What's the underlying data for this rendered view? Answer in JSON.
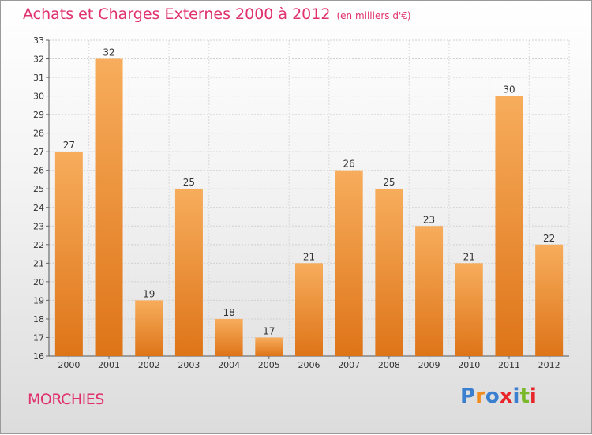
{
  "header": {
    "title": "Achats et Charges Externes 2000 à 2012",
    "unit": "(en milliers d'€)"
  },
  "footer": {
    "place": "MORCHIES",
    "logo_letters": [
      "P",
      "r",
      "o",
      "x",
      "i",
      "t",
      "i"
    ],
    "logo_colors": [
      "#3a7fd0",
      "#f28c1e",
      "#3a7fd0",
      "#e8262a",
      "#3a7fd0",
      "#7ab829",
      "#e8262a"
    ]
  },
  "chart_data": {
    "type": "bar",
    "title": "Achats et Charges Externes 2000 à 2012",
    "subtitle": "(en milliers d'€)",
    "xlabel": "",
    "ylabel": "",
    "categories": [
      "2000",
      "2001",
      "2002",
      "2003",
      "2004",
      "2005",
      "2006",
      "2007",
      "2008",
      "2009",
      "2010",
      "2011",
      "2012"
    ],
    "values": [
      27,
      32,
      19,
      25,
      18,
      17,
      21,
      26,
      25,
      23,
      21,
      30,
      22
    ],
    "ylim": [
      16,
      33
    ],
    "yticks": [
      16,
      17,
      18,
      19,
      20,
      21,
      22,
      23,
      24,
      25,
      26,
      27,
      28,
      29,
      30,
      31,
      32,
      33
    ],
    "grid": true,
    "bar_color": "#f0922e"
  }
}
